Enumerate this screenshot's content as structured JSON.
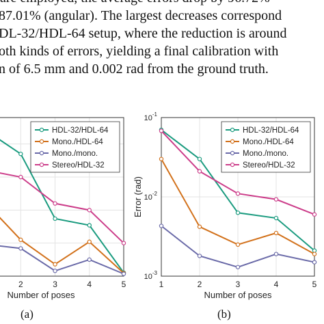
{
  "paragraph": {
    "lines": [
      "87.01% (angular). The largest decreases correspond",
      "DL-32/HDL-64 setup, where the reduction is around",
      "oth kinds of errors, yielding a final calibration with",
      "n of 6.5 mm and 0.002 rad from the ground truth."
    ],
    "top_fragment": "are employed, the average errors drop by 96.72%"
  },
  "captions": {
    "left": "(a)",
    "right": "(b)"
  },
  "chart_data": [
    {
      "panel": "a",
      "type": "line",
      "x": [
        1,
        2,
        3,
        4,
        5
      ],
      "xlabel": "Number of poses",
      "ylabel": "",
      "x_ticks": [
        "2",
        "3",
        "4",
        "5"
      ],
      "grid": true,
      "legend": "top-right",
      "series": [
        {
          "name": "HDL-32/HDL-64",
          "color": "#1a9b7f",
          "values": [
            0.22,
            0.185,
            0.087,
            0.077,
            0.0052
          ]
        },
        {
          "name": "Mono./HDL-64",
          "color": "#d2711b",
          "values": [
            0.11,
            0.055,
            0.018,
            0.052,
            0.0045
          ]
        },
        {
          "name": "Mono./mono.",
          "color": "#6a6aa8",
          "values": [
            0.048,
            0.042,
            0.008,
            0.025,
            0.0035
          ]
        },
        {
          "name": "Stereo/HDL-32",
          "color": "#cc3d8a",
          "values": [
            0.16,
            0.15,
            0.11,
            0.1,
            0.05
          ]
        }
      ]
    },
    {
      "panel": "b",
      "type": "line",
      "scale": "log",
      "x": [
        1,
        2,
        3,
        4,
        5
      ],
      "xlabel": "Number of poses",
      "ylabel": "Error (rad)",
      "ylim": [
        0.001,
        0.1
      ],
      "x_ticks": [
        "1",
        "2",
        "3",
        "4",
        "5"
      ],
      "y_ticks": [
        {
          "base": "10",
          "exp": "-1",
          "value": 0.1
        },
        {
          "base": "10",
          "exp": "-2",
          "value": 0.01
        },
        {
          "base": "10",
          "exp": "-3",
          "value": 0.001
        }
      ],
      "grid": true,
      "legend": "top-right",
      "series": [
        {
          "name": "HDL-32/HDL-64",
          "color": "#1a9b7f",
          "values": [
            0.07,
            0.03,
            0.0063,
            0.0054,
            0.0021
          ]
        },
        {
          "name": "Mono./HDL-64",
          "color": "#d2711b",
          "values": [
            0.03,
            0.0042,
            0.0025,
            0.0035,
            0.0019
          ]
        },
        {
          "name": "Mono./mono.",
          "color": "#6a6aa8",
          "values": [
            0.0043,
            0.0018,
            0.0013,
            0.0019,
            0.0015
          ]
        },
        {
          "name": "Stereo/HDL-32",
          "color": "#cc3d8a",
          "values": [
            0.068,
            0.021,
            0.011,
            0.0093,
            0.006
          ]
        }
      ]
    }
  ]
}
